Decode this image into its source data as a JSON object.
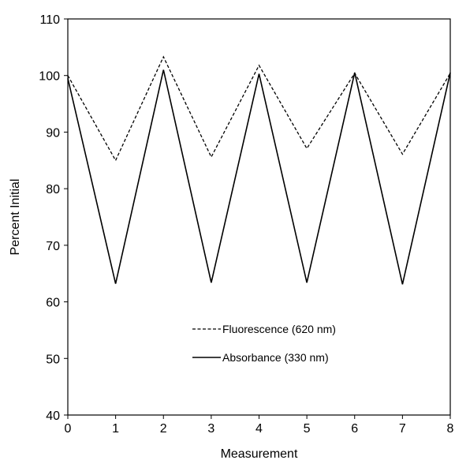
{
  "chart_data": {
    "type": "line",
    "xlabel": "Measurement",
    "ylabel": "Percent Initial",
    "xlim": [
      0,
      8
    ],
    "ylim": [
      40,
      110
    ],
    "xticks": [
      0,
      1,
      2,
      3,
      4,
      5,
      6,
      7,
      8
    ],
    "yticks": [
      40,
      50,
      60,
      70,
      80,
      90,
      100,
      110
    ],
    "grid": false,
    "legend_position": "lower-center",
    "x": [
      0,
      1,
      2,
      3,
      4,
      5,
      6,
      7,
      8
    ],
    "series": [
      {
        "name": "Fluorescence (620 nm)",
        "style": "dashed",
        "color": "#000000",
        "values": [
          100,
          85,
          103.3,
          85.6,
          101.8,
          87.1,
          100.4,
          86.1,
          100.4
        ]
      },
      {
        "name": "Absorbance (330 nm)",
        "style": "solid",
        "color": "#000000",
        "values": [
          99.5,
          63.2,
          101,
          63.4,
          100.3,
          63.4,
          100.5,
          63.1,
          100.5
        ]
      }
    ]
  }
}
